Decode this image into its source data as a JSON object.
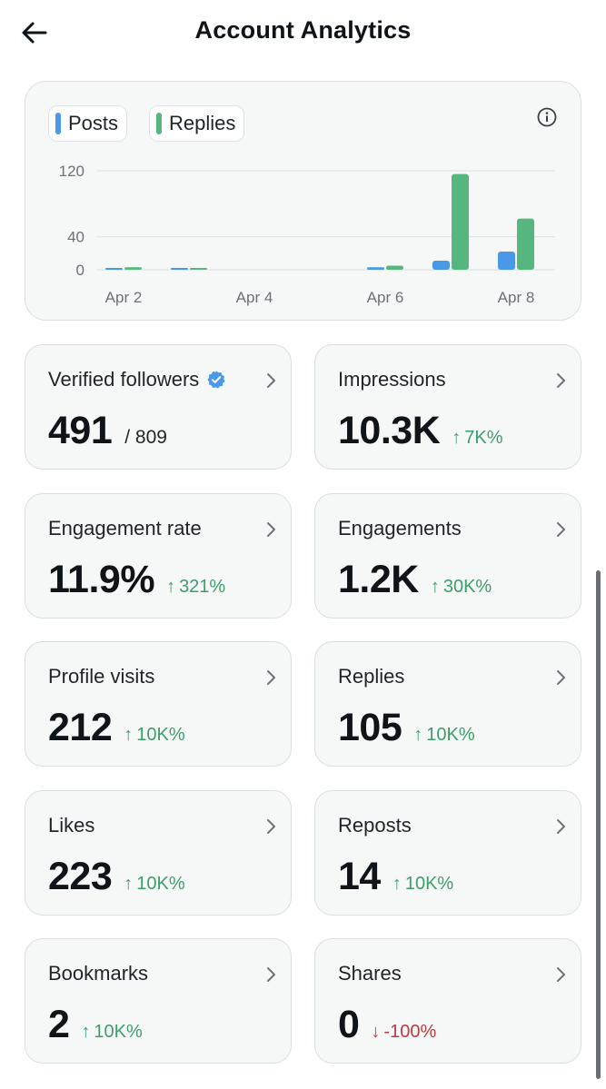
{
  "header": {
    "title": "Account Analytics"
  },
  "legend": {
    "posts_label": "Posts",
    "replies_label": "Replies"
  },
  "colors": {
    "posts": "#4a99e9",
    "replies": "#55b77d",
    "positive": "#3d9e6a",
    "negative": "#c0393f",
    "verified": "#4a99e9"
  },
  "chart_data": {
    "type": "bar",
    "categories": [
      "Apr 2",
      "Apr 3",
      "Apr 4",
      "Apr 5",
      "Apr 6",
      "Apr 7",
      "Apr 8"
    ],
    "x_tick_labels": [
      "Apr 2",
      "Apr 4",
      "Apr 6",
      "Apr 8"
    ],
    "y_tick_labels": [
      "120",
      "40",
      "0"
    ],
    "y_ticks": [
      120,
      40,
      0
    ],
    "ylim": [
      0,
      125
    ],
    "series": [
      {
        "name": "Posts",
        "values": [
          1,
          1,
          0,
          0,
          3,
          11,
          22
        ]
      },
      {
        "name": "Replies",
        "values": [
          3,
          1,
          0,
          0,
          5,
          116,
          62
        ]
      }
    ],
    "title": "",
    "xlabel": "",
    "ylabel": "",
    "grid": true,
    "legend": "top-left"
  },
  "stats": [
    {
      "label": "Verified followers",
      "value": "491",
      "sub": "/ 809",
      "verified": true
    },
    {
      "label": "Impressions",
      "value": "10.3K",
      "change": "7K%",
      "direction": "up"
    },
    {
      "label": "Engagement rate",
      "value": "11.9%",
      "change": "321%",
      "direction": "up"
    },
    {
      "label": "Engagements",
      "value": "1.2K",
      "change": "30K%",
      "direction": "up"
    },
    {
      "label": "Profile visits",
      "value": "212",
      "change": "10K%",
      "direction": "up"
    },
    {
      "label": "Replies",
      "value": "105",
      "change": "10K%",
      "direction": "up"
    },
    {
      "label": "Likes",
      "value": "223",
      "change": "10K%",
      "direction": "up"
    },
    {
      "label": "Reposts",
      "value": "14",
      "change": "10K%",
      "direction": "up"
    },
    {
      "label": "Bookmarks",
      "value": "2",
      "change": "10K%",
      "direction": "up"
    },
    {
      "label": "Shares",
      "value": "0",
      "change": "-100%",
      "direction": "down"
    }
  ]
}
